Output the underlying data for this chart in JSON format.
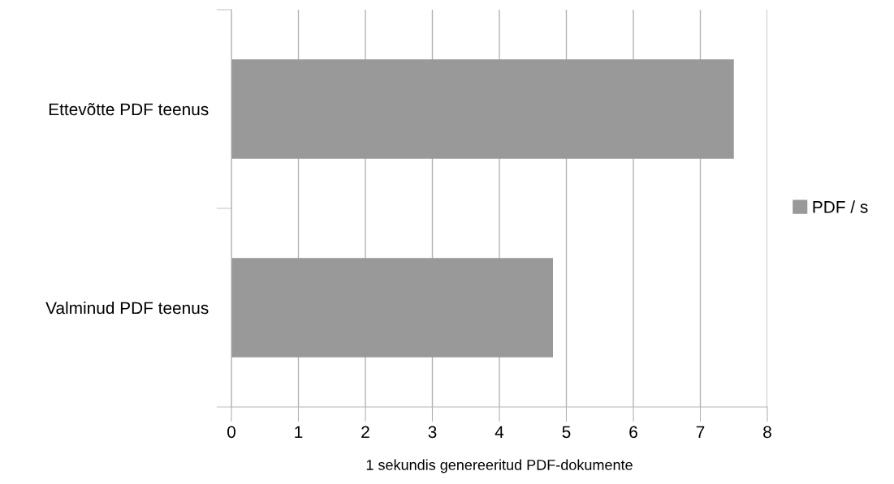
{
  "chart_data": {
    "type": "bar",
    "orientation": "horizontal",
    "categories": [
      "Ettevõtte PDF teenus",
      "Valminud PDF teenus"
    ],
    "series": [
      {
        "name": "PDF / s",
        "color": "#999999",
        "values": [
          7.5,
          4.8
        ]
      }
    ],
    "xlabel": "1 sekundis genereeritud PDF-dokumente",
    "xlim": [
      0,
      8
    ],
    "xticks": [
      0,
      1,
      2,
      3,
      4,
      5,
      6,
      7,
      8
    ],
    "grid": "x",
    "legend": "right"
  }
}
